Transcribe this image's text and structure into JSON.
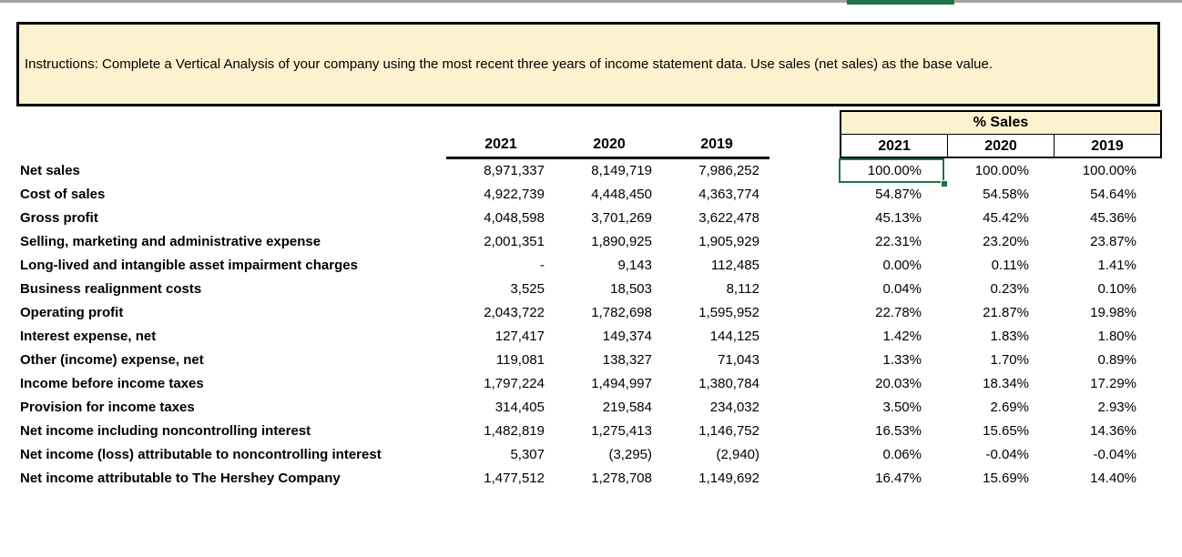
{
  "window": {
    "top_bar_color": "#a3a3a3",
    "accent_color": "#217346"
  },
  "colors": {
    "highlight_fill": "#fdf2cf",
    "selection_green": "#217346"
  },
  "instructions": {
    "text": "Instructions: Complete a Vertical Analysis of your company using the most recent three years of income statement data.  Use sales (net sales) as the base value."
  },
  "table": {
    "pct_section_header": "% Sales",
    "dollar_years": [
      "2021",
      "2020",
      "2019"
    ],
    "pct_years": [
      "2021",
      "2020",
      "2019"
    ],
    "selection": {
      "cell_value": "100.00%",
      "row_label": "Net sales",
      "column": "% Sales 2021"
    },
    "rows": [
      {
        "label": "Net sales",
        "d": [
          "8,971,337",
          "8,149,719",
          "7,986,252"
        ],
        "p": [
          "100.00%",
          "100.00%",
          "100.00%"
        ]
      },
      {
        "label": "Cost of sales",
        "d": [
          "4,922,739",
          "4,448,450",
          "4,363,774"
        ],
        "p": [
          "54.87%",
          "54.58%",
          "54.64%"
        ]
      },
      {
        "label": "Gross profit",
        "d": [
          "4,048,598",
          "3,701,269",
          "3,622,478"
        ],
        "p": [
          "45.13%",
          "45.42%",
          "45.36%"
        ]
      },
      {
        "label": "Selling, marketing and administrative expense",
        "d": [
          "2,001,351",
          "1,890,925",
          "1,905,929"
        ],
        "p": [
          "22.31%",
          "23.20%",
          "23.87%"
        ]
      },
      {
        "label": "Long-lived and intangible asset impairment charges",
        "d": [
          "-",
          "9,143",
          "112,485"
        ],
        "p": [
          "0.00%",
          "0.11%",
          "1.41%"
        ]
      },
      {
        "label": "Business realignment costs",
        "d": [
          "3,525",
          "18,503",
          "8,112"
        ],
        "p": [
          "0.04%",
          "0.23%",
          "0.10%"
        ]
      },
      {
        "label": "Operating profit",
        "d": [
          "2,043,722",
          "1,782,698",
          "1,595,952"
        ],
        "p": [
          "22.78%",
          "21.87%",
          "19.98%"
        ]
      },
      {
        "label": "Interest expense, net",
        "d": [
          "127,417",
          "149,374",
          "144,125"
        ],
        "p": [
          "1.42%",
          "1.83%",
          "1.80%"
        ]
      },
      {
        "label": "Other (income) expense, net",
        "d": [
          "119,081",
          "138,327",
          "71,043"
        ],
        "p": [
          "1.33%",
          "1.70%",
          "0.89%"
        ]
      },
      {
        "label": "Income before income taxes",
        "d": [
          "1,797,224",
          "1,494,997",
          "1,380,784"
        ],
        "p": [
          "20.03%",
          "18.34%",
          "17.29%"
        ]
      },
      {
        "label": "Provision for income taxes",
        "d": [
          "314,405",
          "219,584",
          "234,032"
        ],
        "p": [
          "3.50%",
          "2.69%",
          "2.93%"
        ]
      },
      {
        "label": "Net income including noncontrolling interest",
        "d": [
          "1,482,819",
          "1,275,413",
          "1,146,752"
        ],
        "p": [
          "16.53%",
          "15.65%",
          "14.36%"
        ]
      },
      {
        "label": "Net income (loss) attributable to noncontrolling interest",
        "d": [
          "5,307",
          "(3,295)",
          "(2,940)"
        ],
        "p": [
          "0.06%",
          "-0.04%",
          "-0.04%"
        ]
      },
      {
        "label": "Net income attributable to The Hershey Company",
        "d": [
          "1,477,512",
          "1,278,708",
          "1,149,692"
        ],
        "p": [
          "16.47%",
          "15.69%",
          "14.40%"
        ]
      }
    ]
  }
}
